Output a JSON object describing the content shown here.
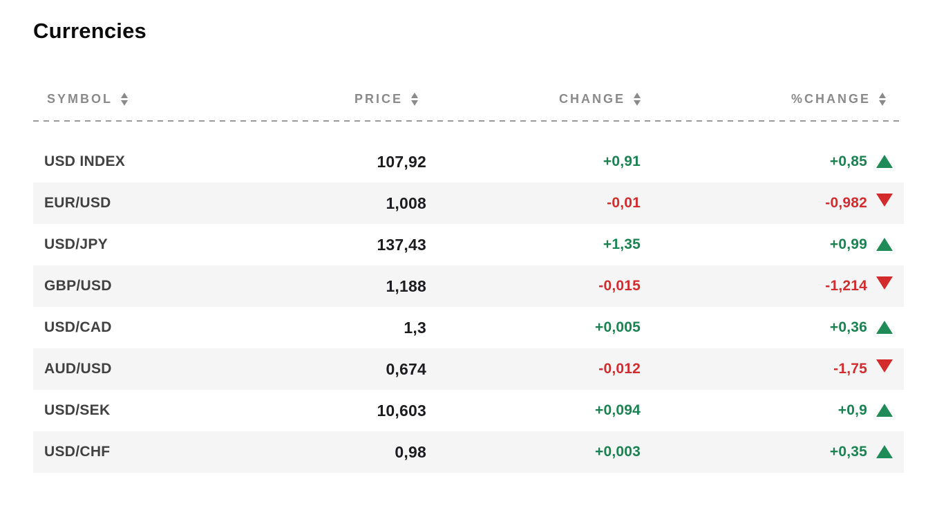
{
  "page": {
    "title": "Currencies",
    "background": "#ffffff"
  },
  "colors": {
    "positive": "#1b8251",
    "negative": "#d22c2e",
    "alt_row_bg": "#f5f5f6",
    "header_text": "#8a8a8a",
    "symbol_text": "#414141",
    "price_text": "#1d1d1f"
  },
  "icons": {
    "sort": "sort-arrows-icon",
    "up": "triangle-up-icon",
    "down": "triangle-down-icon"
  },
  "table": {
    "columns": [
      {
        "key": "symbol",
        "label": "SYMBOL",
        "sortable": true
      },
      {
        "key": "price",
        "label": "PRICE",
        "sortable": true
      },
      {
        "key": "change",
        "label": "CHANGE",
        "sortable": true
      },
      {
        "key": "pct_change",
        "label": "%CHANGE",
        "sortable": true
      }
    ],
    "rows": [
      {
        "symbol": "USD INDEX",
        "price": "107,92",
        "change": "+0,91",
        "pct_change": "+0,85",
        "direction": "up"
      },
      {
        "symbol": "EUR/USD",
        "price": "1,008",
        "change": "-0,01",
        "pct_change": "-0,982",
        "direction": "down"
      },
      {
        "symbol": "USD/JPY",
        "price": "137,43",
        "change": "+1,35",
        "pct_change": "+0,99",
        "direction": "up"
      },
      {
        "symbol": "GBP/USD",
        "price": "1,188",
        "change": "-0,015",
        "pct_change": "-1,214",
        "direction": "down"
      },
      {
        "symbol": "USD/CAD",
        "price": "1,3",
        "change": "+0,005",
        "pct_change": "+0,36",
        "direction": "up"
      },
      {
        "symbol": "AUD/USD",
        "price": "0,674",
        "change": "-0,012",
        "pct_change": "-1,75",
        "direction": "down"
      },
      {
        "symbol": "USD/SEK",
        "price": "10,603",
        "change": "+0,094",
        "pct_change": "+0,9",
        "direction": "up"
      },
      {
        "symbol": "USD/CHF",
        "price": "0,98",
        "change": "+0,003",
        "pct_change": "+0,35",
        "direction": "up"
      }
    ]
  }
}
